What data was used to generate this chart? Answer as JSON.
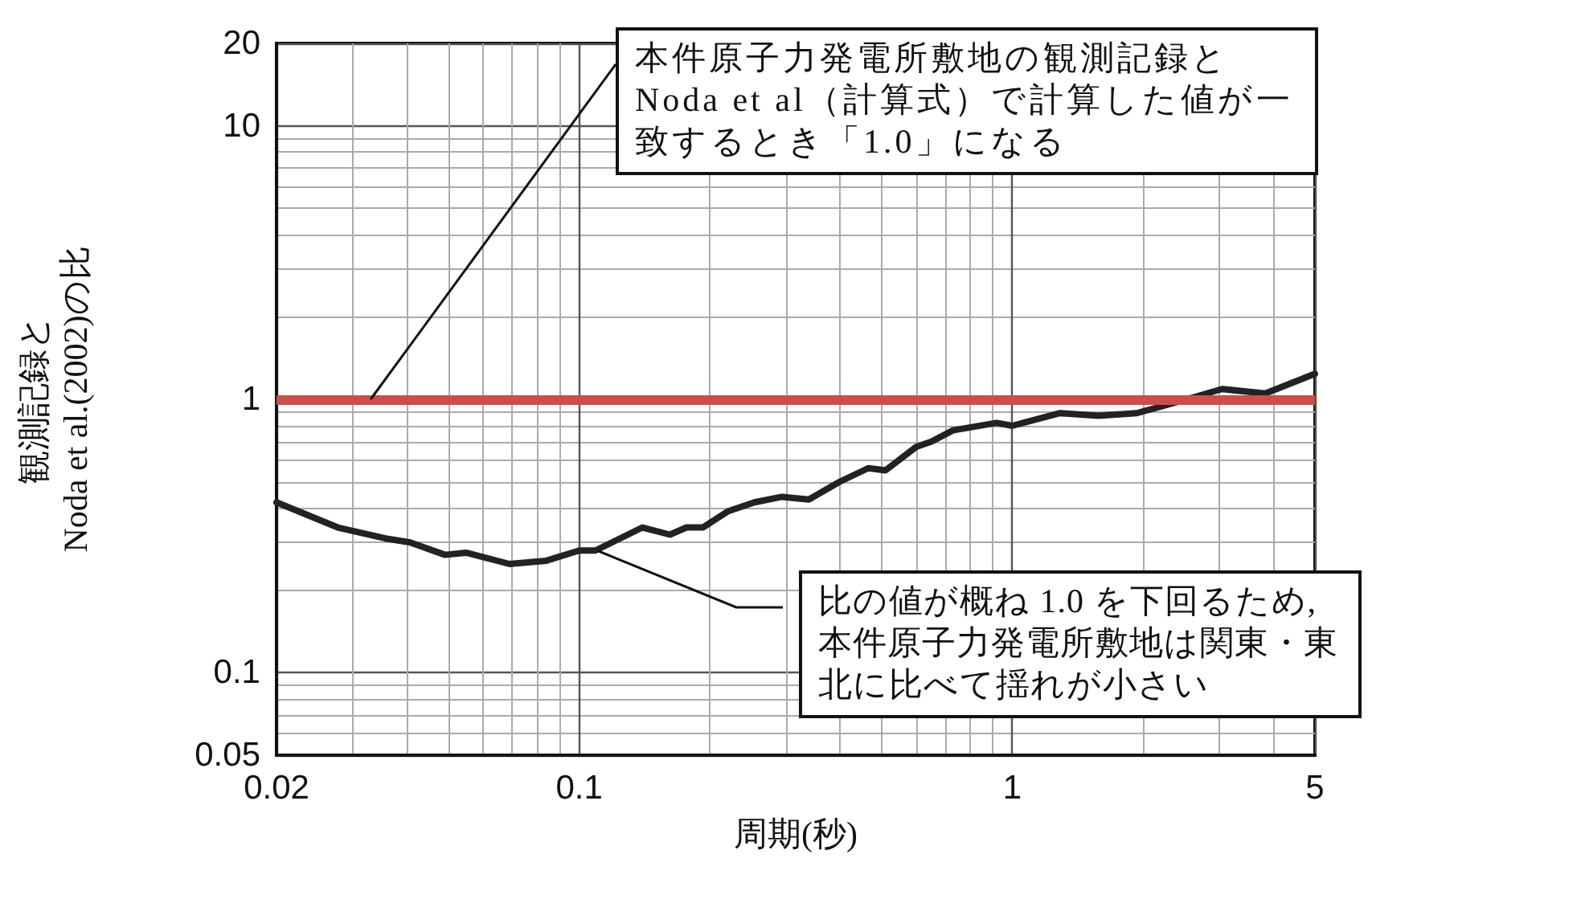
{
  "chart_data": {
    "type": "line",
    "xlabel": "周期(秒)",
    "ylabel": "観測記録と\nNoda et al.(2002)の比",
    "log": "xy",
    "grid": true,
    "marker": "none",
    "line_style": "solid",
    "xlim": [
      0.02,
      5
    ],
    "xticks": [
      0.02,
      0.1,
      1,
      5
    ],
    "ylim": [
      0.05,
      20
    ],
    "yticks": [
      0.05,
      0.1,
      1,
      10,
      20
    ],
    "x": [
      0.02,
      0.0277,
      0.0357,
      0.0406,
      0.049,
      0.0548,
      0.069,
      0.084,
      0.1,
      0.109,
      0.14,
      0.162,
      0.177,
      0.193,
      0.221,
      0.254,
      0.294,
      0.339,
      0.4,
      0.465,
      0.51,
      0.6,
      0.65,
      0.73,
      0.92,
      1.0,
      1.29,
      1.58,
      1.94,
      2.42,
      3.05,
      3.84,
      5
    ],
    "series": [
      {
        "color": "#222222",
        "values": [
          0.42,
          0.34,
          0.31,
          0.3,
          0.27,
          0.275,
          0.25,
          0.257,
          0.28,
          0.28,
          0.34,
          0.32,
          0.34,
          0.34,
          0.39,
          0.42,
          0.44,
          0.43,
          0.5,
          0.56,
          0.55,
          0.67,
          0.7,
          0.77,
          0.82,
          0.8,
          0.89,
          0.87,
          0.89,
          0.98,
          1.09,
          1.05,
          1.24
        ]
      }
    ],
    "ref_lines": [
      {
        "axis": "y",
        "value": 1,
        "color": "#c8504a"
      }
    ],
    "annotations": [
      {
        "text": "本件原子力発電所敷地の観測記録と Noda et al（計算式）で計算した値が一致するとき「1.0」になる",
        "x": 0.033,
        "y": 1
      },
      {
        "text": "比の値が概ね 1.0 を下回るため,本件原子力発電所敷地は関東・東北に比べて揺れが小さい",
        "x": 0.11,
        "y": 0.28
      }
    ]
  }
}
